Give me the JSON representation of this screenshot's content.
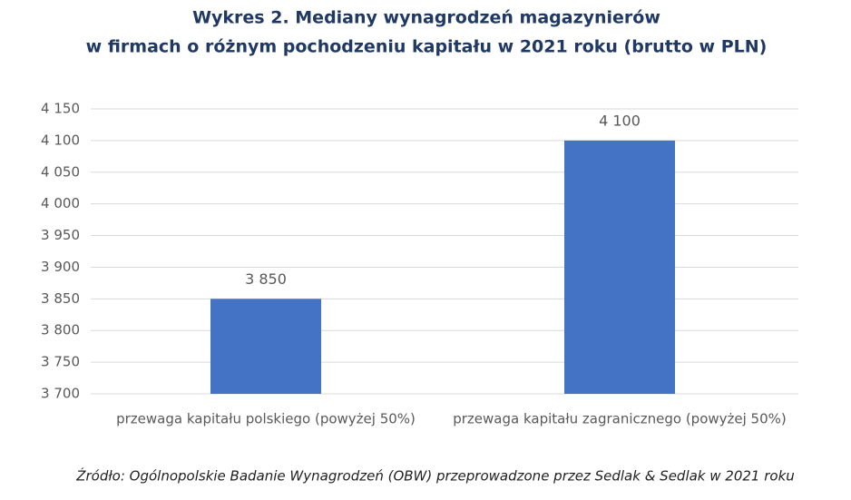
{
  "chart_data": {
    "type": "bar",
    "title": [
      "Wykres 2. Mediany wynagrodzeń magazynierów",
      "w firmach o różnym pochodzeniu kapitału w 2021 roku (brutto w PLN)"
    ],
    "categories": [
      "przewaga kapitału polskiego (powyżej 50%)",
      "przewaga kapitału zagranicznego (powyżej 50%)"
    ],
    "values": [
      3850,
      4100
    ],
    "value_labels": [
      "3 850",
      "4 100"
    ],
    "color": "#4472c4",
    "ylim": [
      3700,
      4150
    ],
    "yticks": [
      {
        "value": 3700,
        "label": "3 700"
      },
      {
        "value": 3750,
        "label": "3 750"
      },
      {
        "value": 3800,
        "label": "3 800"
      },
      {
        "value": 3850,
        "label": "3 850"
      },
      {
        "value": 3900,
        "label": "3 900"
      },
      {
        "value": 3950,
        "label": "3 950"
      },
      {
        "value": 4000,
        "label": "4 000"
      },
      {
        "value": 4050,
        "label": "4 050"
      },
      {
        "value": 4100,
        "label": "4 100"
      },
      {
        "value": 4150,
        "label": "4 150"
      }
    ],
    "grid": true,
    "source": "Źródło: Ogólnopolskie Badanie Wynagrodzeń (OBW) przeprowadzone przez Sedlak & Sedlak w 2021 roku"
  }
}
